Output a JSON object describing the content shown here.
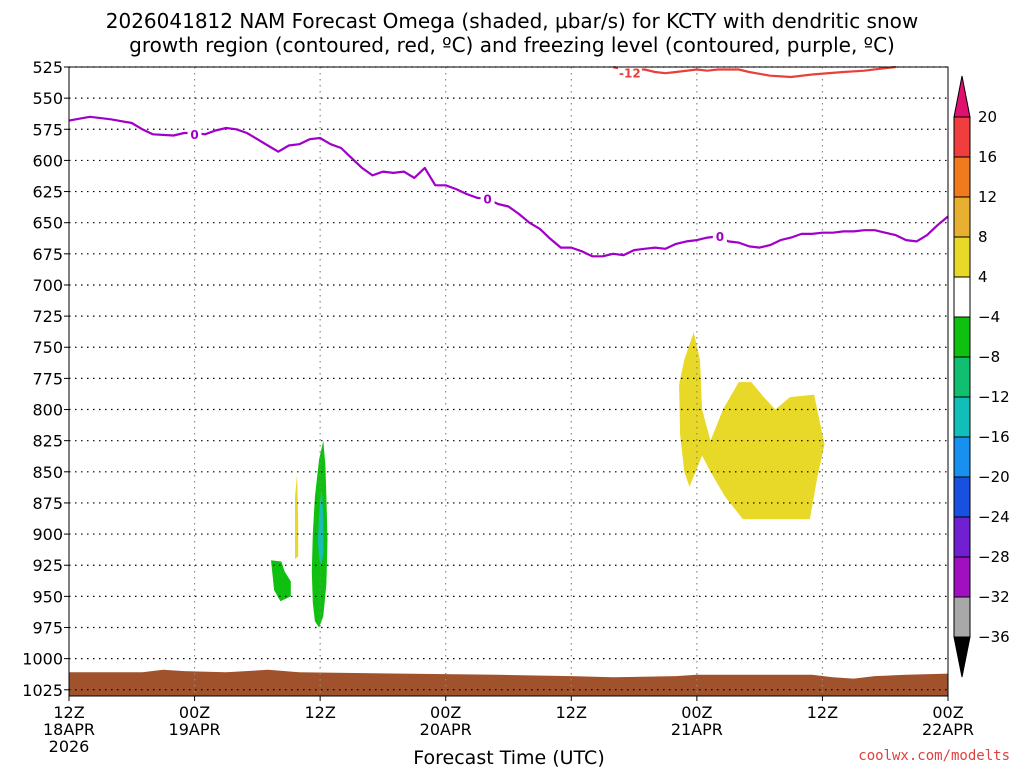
{
  "chart_data": {
    "type": "heatmap",
    "title_line1": "2026041812 NAM Forecast Omega (shaded, μbar/s) for KCTY with dendritic snow",
    "title_line2": "growth region (contoured, red, ºC) and freezing level (contoured, purple, ºC)",
    "xlabel": "Forecast Time (UTC)",
    "credit": "coolwx.com/modelts",
    "y_axis": {
      "range": [
        1030,
        525
      ],
      "ticks": [
        "525",
        "550",
        "575",
        "600",
        "625",
        "650",
        "675",
        "700",
        "725",
        "750",
        "775",
        "800",
        "825",
        "850",
        "875",
        "900",
        "925",
        "950",
        "975",
        "1000",
        "1025"
      ]
    },
    "x_axis": {
      "range_hours": [
        0,
        84
      ],
      "ticks": [
        {
          "h": 0,
          "line1": "12Z",
          "line2": "18APR",
          "line3": "2026"
        },
        {
          "h": 12,
          "line1": "00Z",
          "line2": "19APR"
        },
        {
          "h": 24,
          "line1": "12Z"
        },
        {
          "h": 36,
          "line1": "00Z",
          "line2": "20APR"
        },
        {
          "h": 48,
          "line1": "12Z"
        },
        {
          "h": 60,
          "line1": "00Z",
          "line2": "21APR"
        },
        {
          "h": 72,
          "line1": "12Z"
        },
        {
          "h": 84,
          "line1": "00Z",
          "line2": "22APR"
        }
      ]
    },
    "colorbar": {
      "labels": [
        "20",
        "16",
        "12",
        "8",
        "4",
        "−4",
        "−8",
        "−12",
        "−16",
        "−20",
        "−24",
        "−28",
        "−32",
        "−36"
      ],
      "colors": [
        "#f03d3d",
        "#f07a1e",
        "#e8b030",
        "#e8d828",
        "#ffffff",
        "#10c010",
        "#10c070",
        "#10c0b8",
        "#1890f0",
        "#1850e0",
        "#7020d0",
        "#a010c0",
        "#a8a8a8"
      ],
      "top_arrow_color": "#e0106e",
      "bottom_arrow_color": "#000000"
    },
    "freezing_level": {
      "label": "0",
      "color": "#a000c8",
      "points": [
        [
          0,
          568
        ],
        [
          2,
          565
        ],
        [
          4,
          567
        ],
        [
          6,
          570
        ],
        [
          7,
          575
        ],
        [
          8,
          579
        ],
        [
          10,
          580
        ],
        [
          11,
          578
        ],
        [
          12,
          578
        ],
        [
          13,
          579
        ],
        [
          14,
          576
        ],
        [
          15,
          574
        ],
        [
          16,
          575
        ],
        [
          17,
          578
        ],
        [
          18,
          583
        ],
        [
          19,
          588
        ],
        [
          20,
          593
        ],
        [
          21,
          588
        ],
        [
          22,
          587
        ],
        [
          23,
          583
        ],
        [
          24,
          582
        ],
        [
          25,
          587
        ],
        [
          26,
          590
        ],
        [
          27,
          598
        ],
        [
          28,
          606
        ],
        [
          29,
          612
        ],
        [
          30,
          609
        ],
        [
          31,
          610
        ],
        [
          32,
          609
        ],
        [
          33,
          614
        ],
        [
          34,
          606
        ],
        [
          35,
          620
        ],
        [
          36,
          620
        ],
        [
          37,
          623
        ],
        [
          38,
          627
        ],
        [
          39,
          630
        ],
        [
          40,
          631
        ],
        [
          41,
          635
        ],
        [
          42,
          637
        ],
        [
          43,
          643
        ],
        [
          44,
          650
        ],
        [
          45,
          655
        ],
        [
          46,
          663
        ],
        [
          47,
          670
        ],
        [
          48,
          670
        ],
        [
          49,
          673
        ],
        [
          50,
          677
        ],
        [
          51,
          677
        ],
        [
          52,
          675
        ],
        [
          53,
          676
        ],
        [
          54,
          672
        ],
        [
          55,
          671
        ],
        [
          56,
          670
        ],
        [
          57,
          671
        ],
        [
          58,
          667
        ],
        [
          59,
          665
        ],
        [
          60,
          664
        ],
        [
          61,
          662
        ],
        [
          62,
          661
        ],
        [
          63,
          665
        ],
        [
          64,
          666
        ],
        [
          65,
          669
        ],
        [
          66,
          670
        ],
        [
          67,
          668
        ],
        [
          68,
          664
        ],
        [
          69,
          662
        ],
        [
          70,
          659
        ],
        [
          71,
          659
        ],
        [
          72,
          658
        ],
        [
          73,
          658
        ],
        [
          74,
          657
        ],
        [
          75,
          657
        ],
        [
          76,
          656
        ],
        [
          77,
          656
        ],
        [
          78,
          658
        ],
        [
          79,
          660
        ],
        [
          80,
          664
        ],
        [
          81,
          665
        ],
        [
          82,
          660
        ],
        [
          83,
          652
        ],
        [
          84,
          645
        ]
      ]
    },
    "dgz_contour": {
      "label": "-12",
      "color": "#e8403a",
      "points": [
        [
          52,
          525
        ],
        [
          53,
          527
        ],
        [
          55,
          527
        ],
        [
          56,
          529
        ],
        [
          57,
          530
        ],
        [
          58,
          529
        ],
        [
          60,
          527
        ],
        [
          61,
          528
        ],
        [
          62,
          527
        ],
        [
          64,
          527
        ],
        [
          65,
          529
        ],
        [
          67,
          532
        ],
        [
          69,
          533
        ],
        [
          71,
          531
        ],
        [
          74,
          529
        ],
        [
          76,
          528
        ],
        [
          78,
          526
        ],
        [
          79,
          525
        ]
      ]
    },
    "shaded_regions": [
      {
        "omega": -6,
        "color": "#10c010",
        "points": [
          [
            21.2,
            938
          ],
          [
            20.6,
            930
          ],
          [
            20.3,
            922
          ],
          [
            19.3,
            921
          ],
          [
            19.6,
            945
          ],
          [
            20.2,
            954
          ],
          [
            21.2,
            950
          ]
        ]
      },
      {
        "omega": -6,
        "color": "#10c010",
        "points": [
          [
            24.3,
            825
          ],
          [
            23.9,
            840
          ],
          [
            23.5,
            870
          ],
          [
            23.3,
            900
          ],
          [
            23.2,
            930
          ],
          [
            23.3,
            955
          ],
          [
            23.5,
            970
          ],
          [
            23.9,
            975
          ],
          [
            24.3,
            966
          ],
          [
            24.6,
            940
          ],
          [
            24.7,
            905
          ],
          [
            24.6,
            870
          ],
          [
            24.5,
            845
          ]
        ]
      },
      {
        "omega": -10,
        "color": "#10c0b8",
        "points": [
          [
            24.1,
            865
          ],
          [
            23.9,
            885
          ],
          [
            23.8,
            905
          ],
          [
            23.9,
            920
          ],
          [
            24.1,
            925
          ],
          [
            24.3,
            915
          ],
          [
            24.3,
            890
          ],
          [
            24.2,
            870
          ]
        ]
      },
      {
        "omega": 6,
        "color": "#e8d828",
        "points": [
          [
            21.8,
            852
          ],
          [
            21.6,
            870
          ],
          [
            21.6,
            900
          ],
          [
            21.6,
            920
          ],
          [
            21.9,
            918
          ],
          [
            21.9,
            890
          ]
        ]
      },
      {
        "omega": 6,
        "color": "#e8d828",
        "points": [
          [
            59.7,
            738
          ],
          [
            58.8,
            760
          ],
          [
            58.3,
            780
          ],
          [
            58.4,
            820
          ],
          [
            58.8,
            850
          ],
          [
            59.3,
            862
          ],
          [
            60.5,
            837
          ],
          [
            61.3,
            850
          ],
          [
            62.7,
            870
          ],
          [
            64.4,
            888
          ],
          [
            70.8,
            888
          ],
          [
            71.5,
            855
          ],
          [
            72.2,
            828
          ],
          [
            71.2,
            788
          ],
          [
            68.9,
            790
          ],
          [
            67.5,
            800
          ],
          [
            66.4,
            790
          ],
          [
            65.2,
            778
          ],
          [
            64.0,
            778
          ],
          [
            62.5,
            800
          ],
          [
            61.3,
            825
          ],
          [
            60.5,
            800
          ],
          [
            60.3,
            760
          ]
        ]
      }
    ],
    "terrain": {
      "color": "#a0522d",
      "points": [
        [
          0,
          1011
        ],
        [
          7,
          1011
        ],
        [
          9,
          1009
        ],
        [
          11,
          1010
        ],
        [
          15,
          1011
        ],
        [
          19,
          1009
        ],
        [
          22,
          1011
        ],
        [
          41,
          1013
        ],
        [
          48,
          1014
        ],
        [
          52,
          1015
        ],
        [
          58,
          1014
        ],
        [
          60,
          1013
        ],
        [
          71,
          1013
        ],
        [
          73,
          1015
        ],
        [
          75,
          1016
        ],
        [
          77,
          1014
        ],
        [
          80,
          1013
        ],
        [
          84,
          1012
        ]
      ]
    }
  }
}
